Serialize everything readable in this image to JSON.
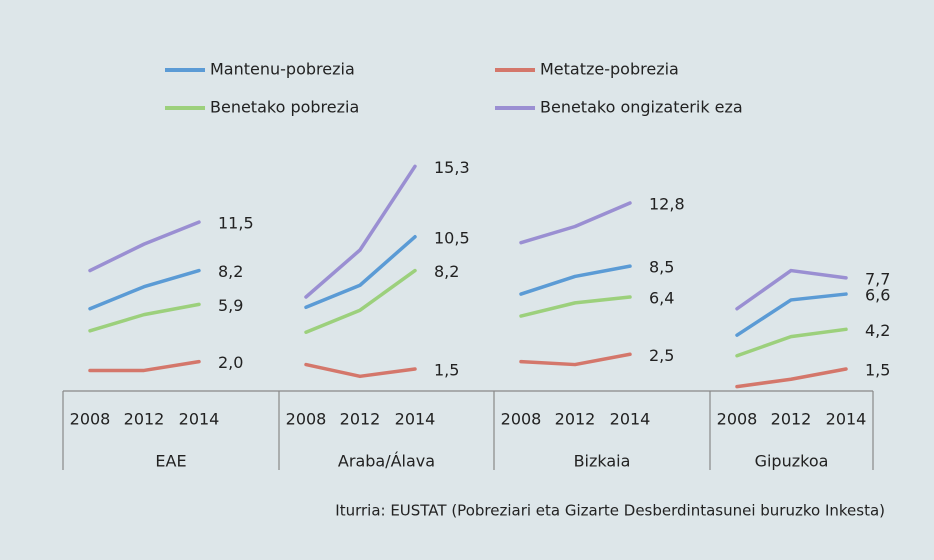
{
  "legend": [
    {
      "name": "Mantenu-pobrezia",
      "color": "#5b9bd5"
    },
    {
      "name": "Metatze-pobrezia",
      "color": "#d4776b"
    },
    {
      "name": "Benetako pobrezia",
      "color": "#9cd07c"
    },
    {
      "name": "Benetako ongizaterik eza",
      "color": "#9a8fd2"
    }
  ],
  "source": "Iturria: EUSTAT (Pobreziari eta Gizarte Desberdintasunei buruzko Inkesta)",
  "chart_data": [
    {
      "type": "line",
      "title": "EAE",
      "categories": [
        "2008",
        "2012",
        "2014"
      ],
      "ylim": [
        0,
        16
      ],
      "series": [
        {
          "values": [
            5.6,
            7.1,
            8.2
          ],
          "value_labels": [
            null,
            null,
            "8,2"
          ]
        },
        {
          "values": [
            1.4,
            1.4,
            2.0
          ],
          "value_labels": [
            null,
            null,
            "2,0"
          ]
        },
        {
          "values": [
            4.1,
            5.2,
            5.9
          ],
          "value_labels": [
            null,
            null,
            "5,9"
          ]
        },
        {
          "values": [
            8.2,
            10.0,
            11.5
          ],
          "value_labels": [
            null,
            null,
            "11,5"
          ]
        }
      ]
    },
    {
      "type": "line",
      "title": "Araba/Álava",
      "categories": [
        "2008",
        "2012",
        "2014"
      ],
      "ylim": [
        0,
        16
      ],
      "series": [
        {
          "values": [
            5.7,
            7.2,
            10.5
          ],
          "value_labels": [
            null,
            null,
            "10,5"
          ]
        },
        {
          "values": [
            1.8,
            1.0,
            1.5
          ],
          "value_labels": [
            null,
            null,
            "1,5"
          ]
        },
        {
          "values": [
            4.0,
            5.5,
            8.2
          ],
          "value_labels": [
            null,
            null,
            "8,2"
          ]
        },
        {
          "values": [
            6.4,
            9.6,
            15.3
          ],
          "value_labels": [
            null,
            null,
            "15,3"
          ]
        }
      ]
    },
    {
      "type": "line",
      "title": "Bizkaia",
      "categories": [
        "2008",
        "2012",
        "2014"
      ],
      "ylim": [
        0,
        16
      ],
      "series": [
        {
          "values": [
            6.6,
            7.8,
            8.5
          ],
          "value_labels": [
            null,
            null,
            "8,5"
          ]
        },
        {
          "values": [
            2.0,
            1.8,
            2.5
          ],
          "value_labels": [
            null,
            null,
            "2,5"
          ]
        },
        {
          "values": [
            5.1,
            6.0,
            6.4
          ],
          "value_labels": [
            null,
            null,
            "6,4"
          ]
        },
        {
          "values": [
            10.1,
            11.2,
            12.8
          ],
          "value_labels": [
            null,
            null,
            "12,8"
          ]
        }
      ]
    },
    {
      "type": "line",
      "title": "Gipuzkoa",
      "categories": [
        "2008",
        "2012",
        "2014"
      ],
      "ylim": [
        0,
        16
      ],
      "series": [
        {
          "values": [
            3.8,
            6.2,
            6.6
          ],
          "value_labels": [
            null,
            null,
            "6,6"
          ]
        },
        {
          "values": [
            0.3,
            0.8,
            1.5
          ],
          "value_labels": [
            null,
            null,
            "1,5"
          ]
        },
        {
          "values": [
            2.4,
            3.7,
            4.2
          ],
          "value_labels": [
            null,
            null,
            "4,2"
          ]
        },
        {
          "values": [
            5.6,
            8.2,
            7.7
          ],
          "value_labels": [
            null,
            null,
            "7,7"
          ]
        }
      ]
    }
  ]
}
